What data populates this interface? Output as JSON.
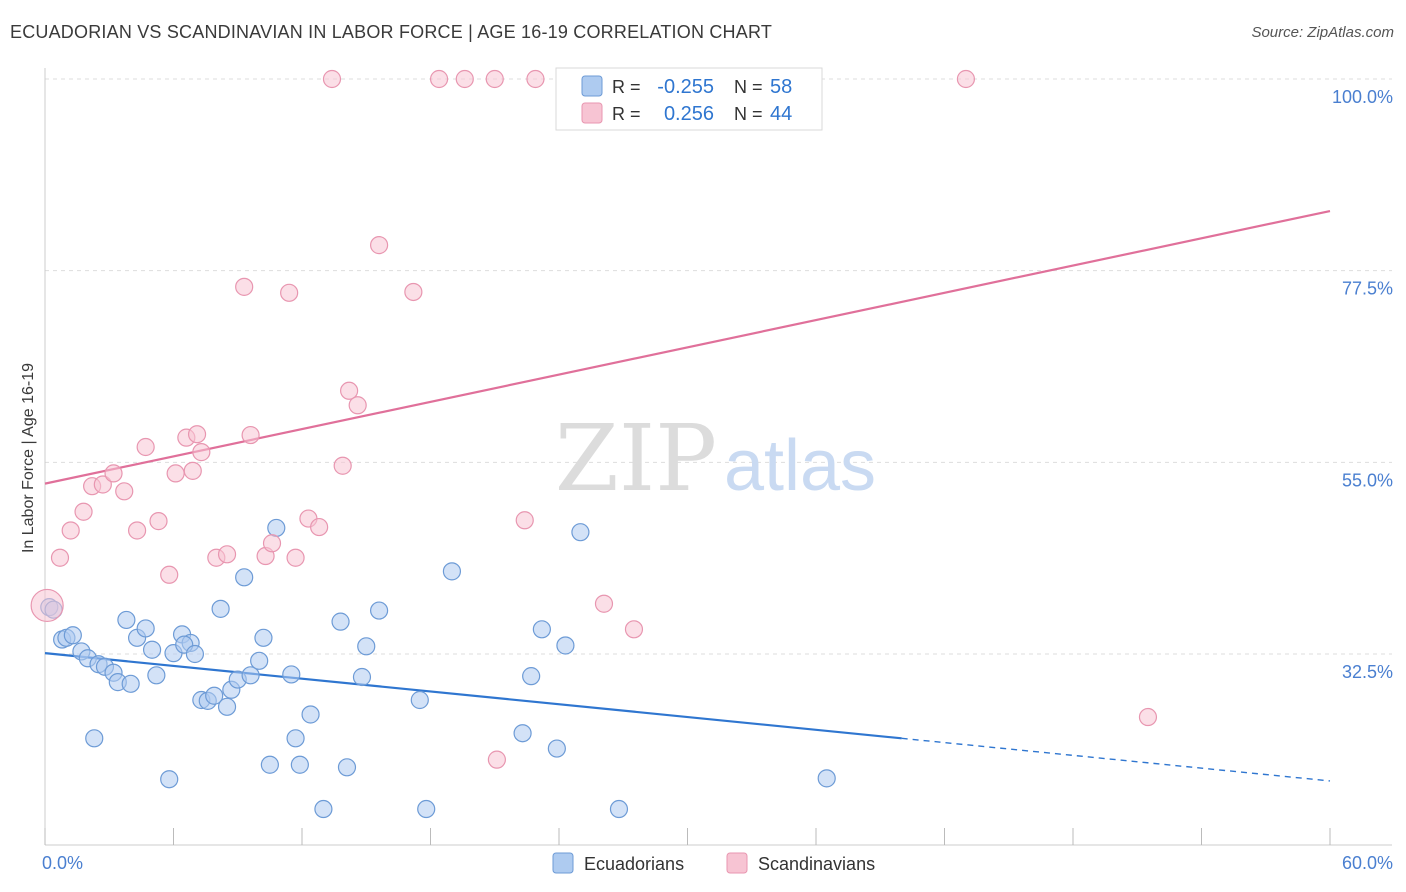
{
  "title": "ECUADORIAN VS SCANDINAVIAN IN LABOR FORCE | AGE 16-19 CORRELATION CHART",
  "source": "Source: ZipAtlas.com",
  "watermark": {
    "zip": "ZIP",
    "atlas": "atlas"
  },
  "colors": {
    "blue_fill": "#aecbf0",
    "blue_stroke": "#6d9bd6",
    "blue_line": "#2f76d0",
    "pink_fill": "#f7c4d3",
    "pink_stroke": "#e896b0",
    "pink_line": "#e0709a",
    "axis_text": "#4a7fd0",
    "grid": "#dddddd"
  },
  "legend_top": [
    {
      "r_label": "R =",
      "r_value": "-0.255",
      "n_label": "N =",
      "n_value": "58",
      "color": "blue"
    },
    {
      "r_label": "R =",
      "r_value": "0.256",
      "n_label": "N =",
      "n_value": "44",
      "color": "pink"
    }
  ],
  "legend_bottom": [
    "Ecuadorians",
    "Scandinavians"
  ],
  "chart_data": {
    "type": "scatter",
    "xlabel": "",
    "ylabel": "In Labor Force | Age 16-19",
    "xlim": [
      0,
      60
    ],
    "ylim": [
      11,
      102
    ],
    "x_tick_labels": [
      {
        "value": 0,
        "label": "0.0%"
      },
      {
        "value": 60,
        "label": "60.0%"
      }
    ],
    "y_tick_labels": [
      {
        "value": 32.5,
        "label": "32.5%"
      },
      {
        "value": 55.0,
        "label": "55.0%"
      },
      {
        "value": 77.5,
        "label": "77.5%"
      },
      {
        "value": 100.0,
        "label": "100.0%"
      }
    ],
    "grid": true,
    "legend_position": "top-center",
    "series": [
      {
        "name": "Ecuadorians",
        "color": "blue",
        "trend": {
          "x0": 0,
          "y0": 32.6,
          "x1": 40,
          "y1": 22.6,
          "dashed_to_x": 60,
          "dashed_to_y": 17.6
        },
        "points": [
          [
            0.2,
            38.0
          ],
          [
            0.8,
            34.2
          ],
          [
            1.0,
            34.4
          ],
          [
            1.3,
            34.7
          ],
          [
            1.7,
            32.8
          ],
          [
            2.0,
            32.0
          ],
          [
            2.3,
            22.6
          ],
          [
            2.5,
            31.3
          ],
          [
            2.8,
            31.0
          ],
          [
            3.2,
            30.3
          ],
          [
            3.4,
            29.2
          ],
          [
            4.0,
            29.0
          ],
          [
            3.8,
            36.5
          ],
          [
            4.3,
            34.4
          ],
          [
            4.7,
            35.5
          ],
          [
            5.0,
            33.0
          ],
          [
            5.2,
            30.0
          ],
          [
            5.8,
            17.8
          ],
          [
            6.0,
            32.6
          ],
          [
            6.4,
            34.8
          ],
          [
            6.8,
            33.8
          ],
          [
            6.5,
            33.6
          ],
          [
            7.0,
            32.5
          ],
          [
            7.3,
            27.1
          ],
          [
            7.6,
            27.0
          ],
          [
            7.9,
            27.6
          ],
          [
            8.2,
            37.8
          ],
          [
            8.5,
            26.3
          ],
          [
            8.7,
            28.3
          ],
          [
            9.3,
            41.5
          ],
          [
            9.0,
            29.5
          ],
          [
            9.6,
            30.0
          ],
          [
            10.0,
            31.7
          ],
          [
            10.2,
            34.4
          ],
          [
            10.5,
            19.5
          ],
          [
            10.8,
            47.3
          ],
          [
            11.5,
            30.1
          ],
          [
            11.7,
            22.6
          ],
          [
            11.9,
            19.5
          ],
          [
            12.4,
            25.4
          ],
          [
            13.0,
            14.3
          ],
          [
            13.8,
            36.3
          ],
          [
            14.1,
            19.2
          ],
          [
            14.8,
            29.8
          ],
          [
            15.0,
            33.4
          ],
          [
            15.6,
            37.6
          ],
          [
            17.5,
            27.1
          ],
          [
            17.8,
            14.3
          ],
          [
            19.0,
            42.2
          ],
          [
            22.3,
            23.2
          ],
          [
            22.7,
            29.9
          ],
          [
            23.2,
            35.4
          ],
          [
            23.9,
            21.4
          ],
          [
            24.3,
            33.5
          ],
          [
            25.0,
            46.8
          ],
          [
            26.8,
            14.3
          ],
          [
            36.5,
            17.9
          ],
          [
            0.4,
            37.7
          ]
        ]
      },
      {
        "name": "Scandinavians",
        "color": "pink",
        "trend": {
          "x0": 0,
          "y0": 52.5,
          "x1": 60,
          "y1": 84.5
        },
        "points": [
          [
            0.1,
            38.2
          ],
          [
            0.7,
            43.8
          ],
          [
            1.2,
            47.0
          ],
          [
            1.8,
            49.2
          ],
          [
            2.2,
            52.2
          ],
          [
            2.7,
            52.4
          ],
          [
            3.2,
            53.7
          ],
          [
            3.7,
            51.6
          ],
          [
            4.3,
            47.0
          ],
          [
            4.7,
            56.8
          ],
          [
            5.3,
            48.1
          ],
          [
            5.8,
            41.8
          ],
          [
            6.1,
            53.7
          ],
          [
            6.6,
            57.9
          ],
          [
            6.9,
            54.0
          ],
          [
            7.1,
            58.3
          ],
          [
            7.3,
            56.2
          ],
          [
            8.0,
            43.8
          ],
          [
            8.5,
            44.2
          ],
          [
            9.3,
            75.6
          ],
          [
            9.6,
            58.2
          ],
          [
            10.3,
            44.0
          ],
          [
            10.6,
            45.5
          ],
          [
            11.4,
            74.9
          ],
          [
            11.7,
            43.8
          ],
          [
            12.3,
            48.4
          ],
          [
            12.8,
            47.4
          ],
          [
            13.4,
            100.0
          ],
          [
            13.9,
            54.6
          ],
          [
            14.2,
            63.4
          ],
          [
            14.6,
            61.7
          ],
          [
            15.6,
            80.5
          ],
          [
            17.2,
            75.0
          ],
          [
            18.4,
            100.0
          ],
          [
            19.6,
            100.0
          ],
          [
            21.0,
            100.0
          ],
          [
            22.4,
            48.2
          ],
          [
            21.1,
            20.1
          ],
          [
            22.9,
            100.0
          ],
          [
            24.3,
            100.0
          ],
          [
            26.1,
            38.4
          ],
          [
            27.5,
            35.4
          ],
          [
            43.0,
            100.0
          ],
          [
            51.5,
            25.1
          ]
        ]
      }
    ]
  }
}
